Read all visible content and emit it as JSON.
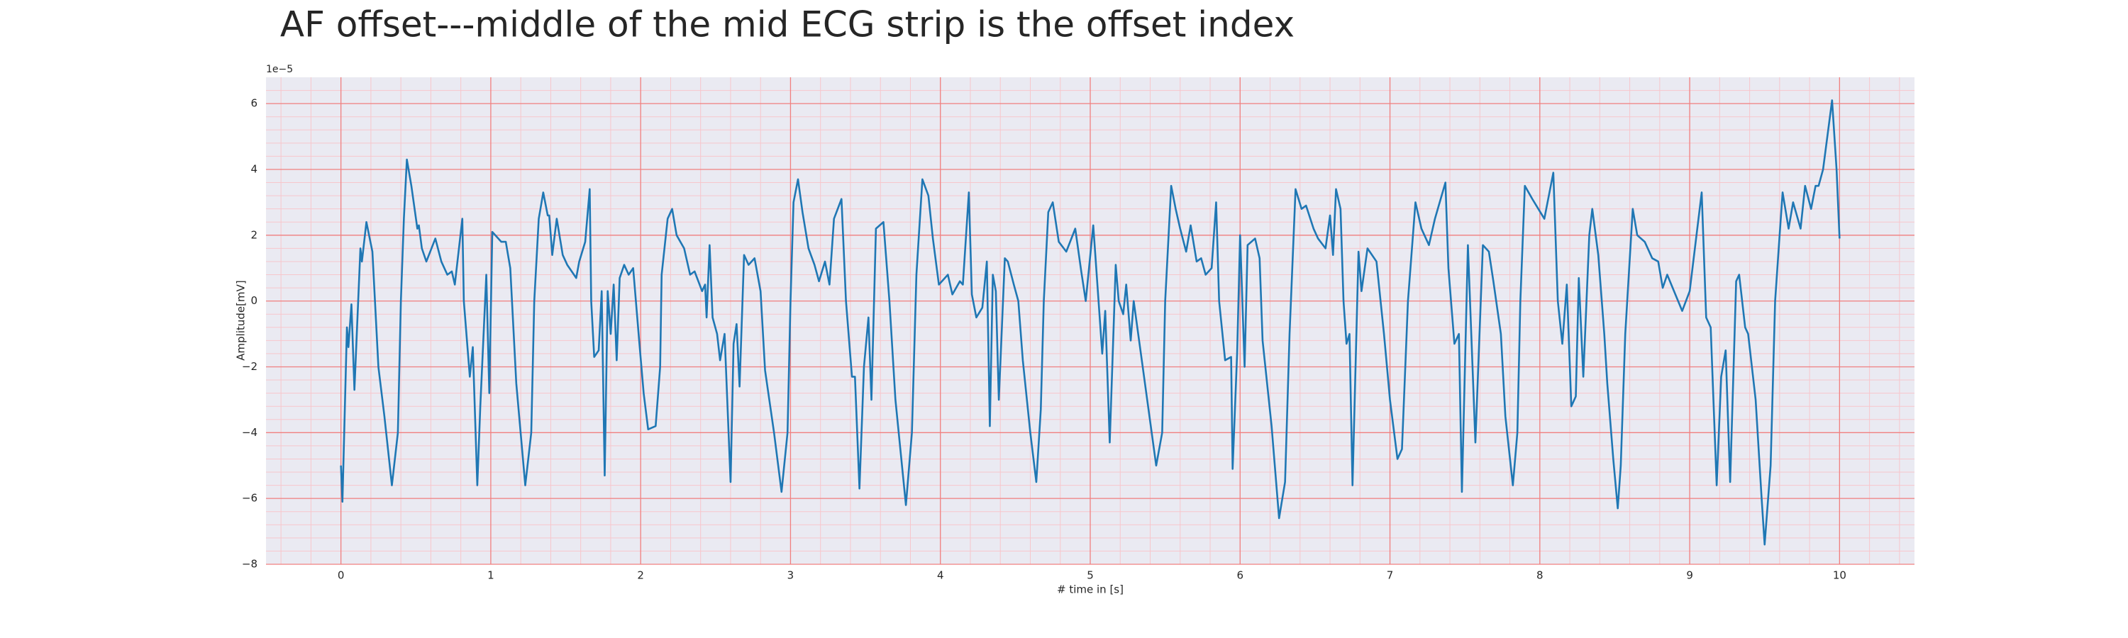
{
  "chart_data": {
    "type": "line",
    "title": "AF offset---middle of the mid ECG strip is the offset index",
    "xlabel": "# time in [s]",
    "ylabel": "Amplitude[mV]",
    "y_offset_label": "1e−5",
    "color": "#1f77b4",
    "grid": true,
    "grid_color": "#f08080",
    "minor_grid": true,
    "minor_grid_color": "#f7c6cc",
    "background": "#eaeaf2",
    "xlim": [
      -0.5,
      10.5
    ],
    "ylim": [
      -8,
      6.8
    ],
    "xticks": [
      0,
      1,
      2,
      3,
      4,
      5,
      6,
      7,
      8,
      9,
      10
    ],
    "yticks": [
      {
        "value": -8,
        "label": "−8"
      },
      {
        "value": -6,
        "label": "−6"
      },
      {
        "value": -4,
        "label": "−4"
      },
      {
        "value": -2,
        "label": "−2"
      },
      0,
      2,
      4,
      6
    ],
    "x": [
      0.0,
      0.01,
      0.04,
      0.05,
      0.07,
      0.09,
      0.13,
      0.14,
      0.17,
      0.21,
      0.25,
      0.29,
      0.34,
      0.38,
      0.4,
      0.42,
      0.44,
      0.47,
      0.51,
      0.52,
      0.54,
      0.57,
      0.63,
      0.67,
      0.71,
      0.74,
      0.76,
      0.81,
      0.82,
      0.86,
      0.88,
      0.91,
      0.93,
      0.97,
      0.99,
      1.01,
      1.07,
      1.1,
      1.13,
      1.17,
      1.23,
      1.27,
      1.29,
      1.32,
      1.35,
      1.38,
      1.39,
      1.41,
      1.44,
      1.48,
      1.51,
      1.57,
      1.59,
      1.63,
      1.66,
      1.67,
      1.69,
      1.72,
      1.74,
      1.76,
      1.78,
      1.8,
      1.82,
      1.84,
      1.86,
      1.89,
      1.92,
      1.95,
      1.99,
      2.02,
      2.05,
      2.1,
      2.13,
      2.14,
      2.18,
      2.21,
      2.24,
      2.29,
      2.33,
      2.36,
      2.41,
      2.43,
      2.44,
      2.46,
      2.48,
      2.51,
      2.53,
      2.56,
      2.6,
      2.62,
      2.64,
      2.66,
      2.69,
      2.72,
      2.76,
      2.8,
      2.83,
      2.89,
      2.94,
      2.98,
      3.0,
      3.02,
      3.05,
      3.08,
      3.12,
      3.16,
      3.19,
      3.23,
      3.26,
      3.29,
      3.34,
      3.37,
      3.41,
      3.43,
      3.46,
      3.49,
      3.52,
      3.54,
      3.57,
      3.62,
      3.66,
      3.7,
      3.77,
      3.81,
      3.84,
      3.88,
      3.92,
      3.95,
      3.99,
      4.05,
      4.08,
      4.13,
      4.15,
      4.19,
      4.21,
      4.24,
      4.28,
      4.31,
      4.33,
      4.35,
      4.37,
      4.39,
      4.43,
      4.45,
      4.49,
      4.52,
      4.55,
      4.6,
      4.64,
      4.67,
      4.69,
      4.72,
      4.75,
      4.79,
      4.84,
      4.9,
      4.94,
      4.97,
      5.02,
      5.08,
      5.1,
      5.13,
      5.17,
      5.19,
      5.22,
      5.24,
      5.27,
      5.29,
      5.38,
      5.44,
      5.48,
      5.5,
      5.54,
      5.57,
      5.6,
      5.64,
      5.67,
      5.71,
      5.74,
      5.77,
      5.81,
      5.84,
      5.86,
      5.9,
      5.94,
      5.95,
      5.98,
      6.0,
      6.03,
      6.05,
      6.1,
      6.13,
      6.15,
      6.21,
      6.26,
      6.3,
      6.33,
      6.37,
      6.41,
      6.44,
      6.49,
      6.52,
      6.57,
      6.6,
      6.62,
      6.64,
      6.67,
      6.69,
      6.71,
      6.73,
      6.75,
      6.79,
      6.81,
      6.85,
      6.91,
      6.96,
      7.0,
      7.05,
      7.08,
      7.12,
      7.17,
      7.21,
      7.26,
      7.3,
      7.37,
      7.39,
      7.43,
      7.46,
      7.48,
      7.52,
      7.57,
      7.62,
      7.66,
      7.69,
      7.74,
      7.77,
      7.82,
      7.85,
      7.87,
      7.9,
      7.95,
      7.99,
      8.03,
      8.09,
      8.12,
      8.15,
      8.18,
      8.21,
      8.24,
      8.26,
      8.29,
      8.33,
      8.35,
      8.39,
      8.43,
      8.45,
      8.49,
      8.52,
      8.54,
      8.57,
      8.62,
      8.65,
      8.7,
      8.75,
      8.79,
      8.82,
      8.85,
      8.95,
      9.0,
      9.04,
      9.08,
      9.11,
      9.14,
      9.18,
      9.21,
      9.24,
      9.27,
      9.31,
      9.33,
      9.37,
      9.39,
      9.44,
      9.48,
      9.5,
      9.54,
      9.57,
      9.6,
      9.62,
      9.66,
      9.69,
      9.74,
      9.77,
      9.81,
      9.84,
      9.86,
      9.89,
      9.95,
      9.98,
      10.0
    ],
    "values": [
      -5.0,
      -6.1,
      -0.8,
      -1.4,
      -0.1,
      -2.7,
      1.6,
      1.2,
      2.4,
      1.5,
      -2.0,
      -3.5,
      -5.6,
      -4.0,
      0,
      2.5,
      4.3,
      3.5,
      2.2,
      2.3,
      1.6,
      1.2,
      1.9,
      1.2,
      0.8,
      0.9,
      0.5,
      2.5,
      0,
      -2.3,
      -1.4,
      -5.6,
      -3.2,
      0.8,
      -2.8,
      2.1,
      1.8,
      1.8,
      1.0,
      -2.5,
      -5.6,
      -4.0,
      0,
      2.5,
      3.3,
      2.6,
      2.6,
      1.4,
      2.5,
      1.4,
      1.1,
      0.7,
      1.2,
      1.8,
      3.4,
      0,
      -1.7,
      -1.5,
      0.3,
      -5.3,
      0.3,
      -1.0,
      0.5,
      -1.8,
      0.7,
      1.1,
      0.8,
      1.0,
      -1.2,
      -2.8,
      -3.9,
      -3.8,
      -2.0,
      0.8,
      2.5,
      2.8,
      2.0,
      1.6,
      0.8,
      0.9,
      0.3,
      0.5,
      -0.5,
      1.7,
      -0.5,
      -1.0,
      -1.8,
      -1.0,
      -5.5,
      -1.3,
      -0.7,
      -2.6,
      1.4,
      1.1,
      1.3,
      0.3,
      -2.1,
      -4.0,
      -5.8,
      -4.0,
      0,
      3.0,
      3.7,
      2.7,
      1.6,
      1.1,
      0.6,
      1.2,
      0.5,
      2.5,
      3.1,
      0,
      -2.3,
      -2.3,
      -5.7,
      -2.0,
      -0.5,
      -3.0,
      2.2,
      2.4,
      0,
      -3.0,
      -6.2,
      -4.0,
      0.8,
      3.7,
      3.2,
      1.9,
      0.5,
      0.8,
      0.2,
      0.6,
      0.5,
      3.3,
      0.2,
      -0.5,
      -0.2,
      1.2,
      -3.8,
      0.8,
      0.3,
      -3.0,
      1.3,
      1.2,
      0.5,
      0,
      -1.8,
      -4.0,
      -5.5,
      -3.3,
      0,
      2.7,
      3.0,
      1.8,
      1.5,
      2.2,
      0.9,
      0,
      2.3,
      -1.6,
      -0.3,
      -4.3,
      1.1,
      0,
      -0.4,
      0.5,
      -1.2,
      0,
      -3.0,
      -5.0,
      -4.0,
      0,
      3.5,
      2.8,
      2.2,
      1.5,
      2.3,
      1.2,
      1.3,
      0.8,
      1.0,
      3.0,
      0,
      -1.8,
      -1.7,
      -5.1,
      -1.6,
      2.0,
      -2.0,
      1.7,
      1.9,
      1.3,
      -1.2,
      -3.8,
      -6.6,
      -5.5,
      -1.0,
      3.4,
      2.8,
      2.9,
      2.2,
      1.9,
      1.6,
      2.6,
      1.4,
      3.4,
      2.8,
      0,
      -1.3,
      -1.0,
      -5.6,
      1.5,
      0.3,
      1.6,
      1.2,
      -1.0,
      -3.0,
      -4.8,
      -4.5,
      0,
      3.0,
      2.2,
      1.7,
      2.5,
      3.6,
      1.0,
      -1.3,
      -1.0,
      -5.8,
      1.7,
      -4.3,
      1.7,
      1.5,
      0.6,
      -1.0,
      -3.5,
      -5.6,
      -4.0,
      0,
      3.5,
      3.1,
      2.8,
      2.5,
      3.9,
      0,
      -1.3,
      0.5,
      -3.2,
      -2.9,
      0.7,
      -2.3,
      2.0,
      2.8,
      1.4,
      -1.0,
      -2.5,
      -4.8,
      -6.3,
      -5.0,
      -1.0,
      2.8,
      2.0,
      1.8,
      1.3,
      1.2,
      0.4,
      0.8,
      -0.3,
      0.3,
      1.8,
      3.3,
      -0.5,
      -0.8,
      -5.6,
      -2.3,
      -1.5,
      -5.5,
      0.6,
      0.8,
      -0.8,
      -1.0,
      -3.0,
      -6.0,
      -7.4,
      -5.0,
      0,
      2.0,
      3.3,
      2.2,
      3.0,
      2.2,
      3.5,
      2.8,
      3.5,
      3.5,
      4.0,
      6.1,
      4.0,
      1.9
    ]
  }
}
